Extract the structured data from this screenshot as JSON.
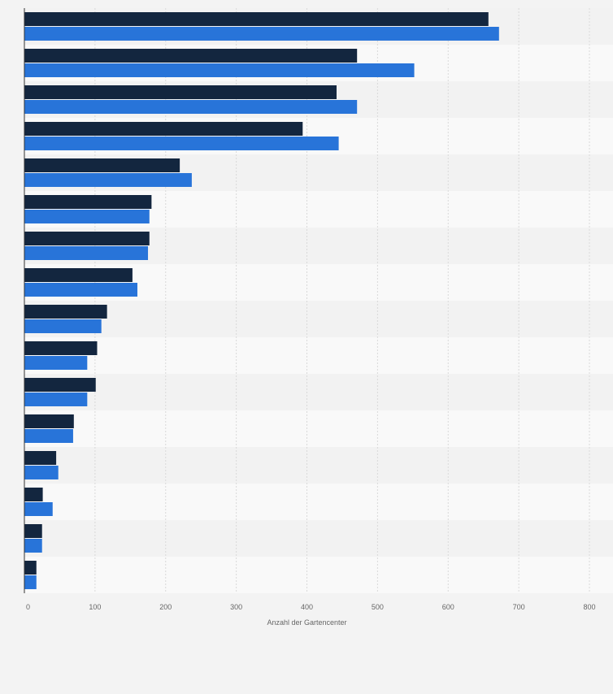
{
  "colors": {
    "page_background": "#f3f3f3",
    "band_dark": "#f2f2f2",
    "band_light": "#f9f9f9",
    "gridline": "#d9d9d9",
    "axis_line": "#333333",
    "tick_label": "#666666",
    "series_1": "#13263f",
    "series_2": "#2874d9"
  },
  "chart_data": {
    "type": "bar",
    "orientation": "horizontal",
    "categories": [
      "",
      "",
      "",
      "",
      "",
      "",
      "",
      "",
      "",
      "",
      "",
      "",
      "",
      "",
      "",
      ""
    ],
    "series": [
      {
        "values": [
          657,
          471,
          442,
          394,
          220,
          180,
          177,
          153,
          117,
          103,
          101,
          70,
          45,
          26,
          25,
          17
        ]
      },
      {
        "values": [
          672,
          552,
          471,
          445,
          237,
          177,
          175,
          160,
          109,
          89,
          89,
          69,
          48,
          40,
          25,
          17
        ]
      }
    ],
    "xlabel": "Anzahl der Gartencenter",
    "ylabel": "",
    "xlim": [
      0,
      800
    ],
    "xticks": [
      0,
      100,
      200,
      300,
      400,
      500,
      600,
      700,
      800
    ],
    "xtick_labels": [
      "0",
      "100",
      "200",
      "300",
      "400",
      "500",
      "600",
      "700",
      "800"
    ],
    "grid": true,
    "legend": "none"
  }
}
